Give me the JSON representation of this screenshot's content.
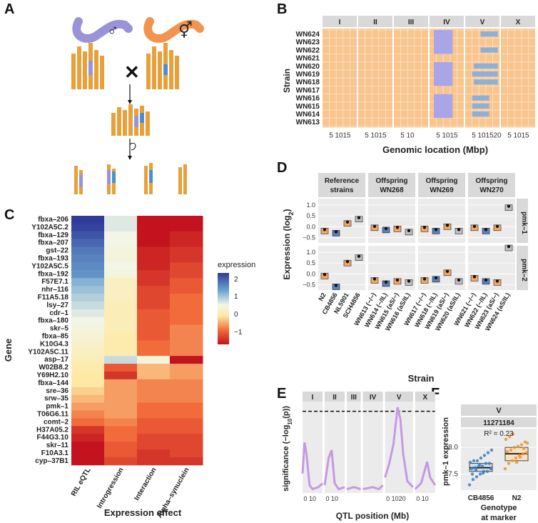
{
  "figure": {
    "panel_labels": [
      "A",
      "B",
      "C",
      "D",
      "E",
      "F"
    ],
    "panelA": {
      "male_symbol": "♂",
      "herm_symbol": "⚥",
      "cross_symbol": "✕"
    },
    "panelB": {
      "ylabel": "Strain",
      "xlabel": "Genomic location (Mbp)",
      "chromosomes": [
        "I",
        "II",
        "III",
        "IV",
        "V",
        "X"
      ],
      "strains": [
        "WN624",
        "WN623",
        "WN622",
        "WN621",
        "WN620",
        "WN619",
        "WN618",
        "WN617",
        "WN616",
        "WN615",
        "WN614",
        "WN613"
      ],
      "ticks": [
        [
          "5",
          "10",
          "15"
        ],
        [
          "5",
          "10",
          "15"
        ],
        [
          "5",
          "10"
        ],
        [
          "5",
          "10",
          "15"
        ],
        [
          "5",
          "10",
          "15",
          "20"
        ],
        [
          "5",
          "10",
          "15"
        ]
      ]
    },
    "panelC": {
      "ylabel": "Gene",
      "xlabel": "Expression effect",
      "columns": [
        "RIL eQTL",
        "Introgression",
        "Interaction",
        "Alpha–synuclein"
      ],
      "genes": [
        "fbxa–206",
        "Y102A5C.2",
        "fbxa–129",
        "fbxa–207",
        "gst–22",
        "fbxa–193",
        "Y102A5C.5",
        "fbxa–192",
        "F57E7.1",
        "nhr–116",
        "F11A5.18",
        "lsy–27",
        "cdr–1",
        "fbxa–180",
        "skr–5",
        "fbxa–85",
        "K10G4.3",
        "Y102A5C.11",
        "asp–17",
        "W02B8.2",
        "Y69H2.10",
        "fbxa–144",
        "sre–36",
        "srw–35",
        "pmk–1",
        "T06G6.11",
        "comt–2",
        "H37A05.2",
        "F44G3.10",
        "skr–11",
        "F10A3.1",
        "cyp–37B1"
      ],
      "legend_title": "expression",
      "legend_ticks": [
        "2",
        "1",
        "0",
        "−1"
      ]
    },
    "panelD": {
      "ylabel": "Expression (log",
      "ylabel_sub": "2",
      "ylabel_end": ")",
      "xlabel": "Strain",
      "facet_cols": [
        {
          "line1": "Reference",
          "line2": "strains"
        },
        {
          "line1": "Offspring",
          "line2": "WN268"
        },
        {
          "line1": "Offspring",
          "line2": "WN269"
        },
        {
          "line1": "Offspring",
          "line2": "WN270"
        }
      ],
      "facet_rows": [
        "pmk–1",
        "pmk–2"
      ],
      "yticks_top": [
        "1.0",
        "0.5",
        "0.0",
        "−0.5"
      ],
      "yticks_bottom": [
        "1.0",
        "0.5",
        "0.0",
        "−0.5"
      ],
      "xlabels": [
        [
          "N2",
          "CB4856",
          "NL5901",
          "SCH4856"
        ],
        [
          "WN613 (−/−)",
          "WN614 (−/IL)",
          "WN615 (aS/−)",
          "WN616 (aS/IL)"
        ],
        [
          "WN617 (−/−)",
          "WN618 (−/IL)",
          "WN619 (aS/−)",
          "WN620 (aS/IL)"
        ],
        [
          "WN621 (−/−)",
          "WN622 (−/IL)",
          "WN623 (aS/−)",
          "WN624 (aS/IL)"
        ]
      ]
    },
    "panelE": {
      "ylabel": "significance (−log",
      "ylabel_sub": "10",
      "ylabel_end": "(p))",
      "xlabel": "QTL position (Mb)",
      "chromosomes": [
        "I",
        "II",
        "III",
        "IV",
        "V",
        "X"
      ],
      "ticks": [
        [
          "0",
          "10"
        ],
        [
          "0",
          "10"
        ],
        [],
        [],
        [
          "0",
          "10",
          "20"
        ],
        [
          "0",
          "10"
        ]
      ]
    },
    "panelF": {
      "facet": "V",
      "marker": "11271184",
      "r2": "R² = 0.23",
      "ylabel": "pmk–1 expression",
      "xlabel1": "Genotype",
      "xlabel2": "at marker",
      "groups": [
        "CB4856",
        "N2"
      ],
      "yticks": [
        "8.0",
        "7.5"
      ]
    }
  },
  "chart_data": [
    {
      "panel": "D",
      "type": "scatter",
      "title": "",
      "series": [
        {
          "name": "pmk–1",
          "values": [
            -0.2,
            -0.3,
            0.15,
            0.35,
            -0.05,
            -0.15,
            -0.1,
            -0.25,
            -0.1,
            -0.2,
            0.0,
            -0.2,
            -0.05,
            -0.2,
            -0.05,
            0.88
          ]
        },
        {
          "name": "pmk–2",
          "values": [
            -0.1,
            -0.6,
            0.5,
            0.75,
            -0.3,
            -0.45,
            -0.35,
            -0.4,
            -0.3,
            -0.25,
            0.05,
            -0.35,
            -0.2,
            -0.35,
            -0.4,
            1.2
          ]
        }
      ],
      "ylim": [
        -0.75,
        1.3
      ]
    },
    {
      "panel": "E",
      "type": "line",
      "title": "",
      "threshold": 4.2,
      "ylim": [
        0,
        4.7
      ],
      "peak_chromosome": "V",
      "peak_value": 4.4
    },
    {
      "panel": "F",
      "type": "scatter",
      "categories": [
        "CB4856",
        "N2"
      ],
      "medians": [
        7.62,
        7.88
      ],
      "q1": [
        7.55,
        7.75
      ],
      "q3": [
        7.7,
        8.0
      ],
      "ylim": [
        7.2,
        8.35
      ]
    }
  ]
}
